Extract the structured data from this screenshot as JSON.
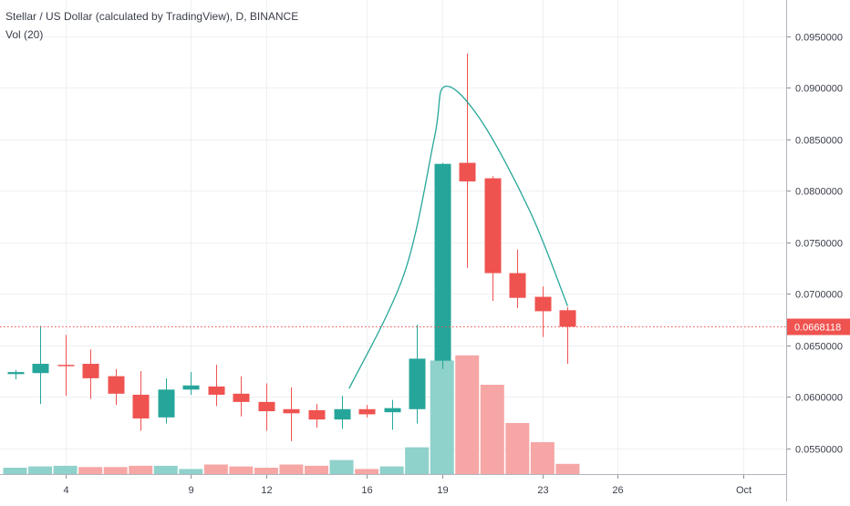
{
  "legend": {
    "title": "Stellar / US Dollar (calculated by TradingView), D, BINANCE",
    "indicator": "Vol (20)"
  },
  "colors": {
    "up": "#26a69a",
    "down": "#ef5350",
    "up_volume": "#8fd1cb",
    "down_volume": "#f6a6a5",
    "grid": "#eef0f3",
    "axis_text": "#3a3e4a",
    "last_price": "#ef5350",
    "annotation": "#26a69a"
  },
  "chart_data": {
    "type": "candlestick",
    "x_unit": "day of month (September; Oct 1 = 31)",
    "y_axis": {
      "ticks": [
        "0.0550000",
        "0.0600000",
        "0.0650000",
        "0.0700000",
        "0.0750000",
        "0.0800000",
        "0.0850000",
        "0.0900000",
        "0.0950000"
      ],
      "tick_values": [
        0.055,
        0.06,
        0.065,
        0.07,
        0.075,
        0.08,
        0.085,
        0.09,
        0.095
      ],
      "ylim": [
        0.0525,
        0.0985
      ]
    },
    "x_axis": {
      "tick_labels": [
        "4",
        "9",
        "12",
        "16",
        "19",
        "23",
        "26",
        "Oct"
      ],
      "tick_values": [
        4,
        9,
        12,
        16,
        19,
        23,
        26,
        31
      ],
      "xlim": [
        1.4,
        32.7
      ]
    },
    "last_price": {
      "label": "0.0668118",
      "value": 0.0668118
    },
    "candles": [
      {
        "x": 2,
        "open": 0.0622,
        "high": 0.0626,
        "low": 0.0617,
        "close": 0.0624
      },
      {
        "x": 3,
        "open": 0.0623,
        "high": 0.0669,
        "low": 0.0593,
        "close": 0.0632
      },
      {
        "x": 4,
        "open": 0.0631,
        "high": 0.066,
        "low": 0.0601,
        "close": 0.063
      },
      {
        "x": 5,
        "open": 0.0632,
        "high": 0.0646,
        "low": 0.0598,
        "close": 0.0618
      },
      {
        "x": 6,
        "open": 0.062,
        "high": 0.0627,
        "low": 0.0592,
        "close": 0.0603
      },
      {
        "x": 7,
        "open": 0.0602,
        "high": 0.0625,
        "low": 0.0567,
        "close": 0.0579
      },
      {
        "x": 8,
        "open": 0.058,
        "high": 0.0618,
        "low": 0.0574,
        "close": 0.0607
      },
      {
        "x": 9,
        "open": 0.0607,
        "high": 0.0624,
        "low": 0.0602,
        "close": 0.0611
      },
      {
        "x": 10,
        "open": 0.061,
        "high": 0.0631,
        "low": 0.0591,
        "close": 0.0602
      },
      {
        "x": 11,
        "open": 0.0603,
        "high": 0.062,
        "low": 0.0581,
        "close": 0.0595
      },
      {
        "x": 12,
        "open": 0.0595,
        "high": 0.0613,
        "low": 0.0567,
        "close": 0.0586
      },
      {
        "x": 13,
        "open": 0.0588,
        "high": 0.0609,
        "low": 0.0557,
        "close": 0.0584
      },
      {
        "x": 14,
        "open": 0.0587,
        "high": 0.0593,
        "low": 0.057,
        "close": 0.0578
      },
      {
        "x": 15,
        "open": 0.0578,
        "high": 0.0601,
        "low": 0.0569,
        "close": 0.0588
      },
      {
        "x": 16,
        "open": 0.0588,
        "high": 0.0592,
        "low": 0.058,
        "close": 0.0583
      },
      {
        "x": 17,
        "open": 0.0585,
        "high": 0.0597,
        "low": 0.0568,
        "close": 0.0589
      },
      {
        "x": 18,
        "open": 0.0588,
        "high": 0.067,
        "low": 0.0574,
        "close": 0.0637
      },
      {
        "x": 19,
        "open": 0.0635,
        "high": 0.0827,
        "low": 0.0627,
        "close": 0.0826
      },
      {
        "x": 20,
        "open": 0.0827,
        "high": 0.0933,
        "low": 0.0725,
        "close": 0.0809
      },
      {
        "x": 21,
        "open": 0.0812,
        "high": 0.0814,
        "low": 0.0693,
        "close": 0.072
      },
      {
        "x": 22,
        "open": 0.072,
        "high": 0.0743,
        "low": 0.0686,
        "close": 0.0696
      },
      {
        "x": 23,
        "open": 0.0697,
        "high": 0.0707,
        "low": 0.0658,
        "close": 0.0683
      },
      {
        "x": 24,
        "open": 0.0684,
        "high": 0.0687,
        "low": 0.0632,
        "close": 0.0668
      }
    ],
    "volume": {
      "scale_max": 1.0,
      "bars": [
        {
          "x": 2,
          "value": 0.05,
          "dir": "up"
        },
        {
          "x": 3,
          "value": 0.06,
          "dir": "up"
        },
        {
          "x": 4,
          "value": 0.065,
          "dir": "up"
        },
        {
          "x": 5,
          "value": 0.055,
          "dir": "down"
        },
        {
          "x": 6,
          "value": 0.055,
          "dir": "down"
        },
        {
          "x": 7,
          "value": 0.065,
          "dir": "down"
        },
        {
          "x": 8,
          "value": 0.065,
          "dir": "up"
        },
        {
          "x": 9,
          "value": 0.04,
          "dir": "up"
        },
        {
          "x": 10,
          "value": 0.075,
          "dir": "down"
        },
        {
          "x": 11,
          "value": 0.06,
          "dir": "down"
        },
        {
          "x": 12,
          "value": 0.05,
          "dir": "down"
        },
        {
          "x": 13,
          "value": 0.075,
          "dir": "down"
        },
        {
          "x": 14,
          "value": 0.065,
          "dir": "down"
        },
        {
          "x": 15,
          "value": 0.11,
          "dir": "up"
        },
        {
          "x": 16,
          "value": 0.04,
          "dir": "down"
        },
        {
          "x": 17,
          "value": 0.06,
          "dir": "up"
        },
        {
          "x": 18,
          "value": 0.21,
          "dir": "up"
        },
        {
          "x": 19,
          "value": 0.89,
          "dir": "up"
        },
        {
          "x": 20,
          "value": 0.93,
          "dir": "down"
        },
        {
          "x": 21,
          "value": 0.7,
          "dir": "down"
        },
        {
          "x": 22,
          "value": 0.4,
          "dir": "down"
        },
        {
          "x": 23,
          "value": 0.25,
          "dir": "down"
        },
        {
          "x": 24,
          "value": 0.08,
          "dir": "down"
        }
      ]
    },
    "annotation": {
      "type": "drawn-curve",
      "points": [
        {
          "x": 15.3,
          "y": 0.0608
        },
        {
          "x": 17.5,
          "y": 0.072
        },
        {
          "x": 18.7,
          "y": 0.0852
        },
        {
          "x": 19.1,
          "y": 0.0901
        },
        {
          "x": 20.5,
          "y": 0.087
        },
        {
          "x": 22.5,
          "y": 0.078
        },
        {
          "x": 24.0,
          "y": 0.0688
        }
      ]
    }
  }
}
